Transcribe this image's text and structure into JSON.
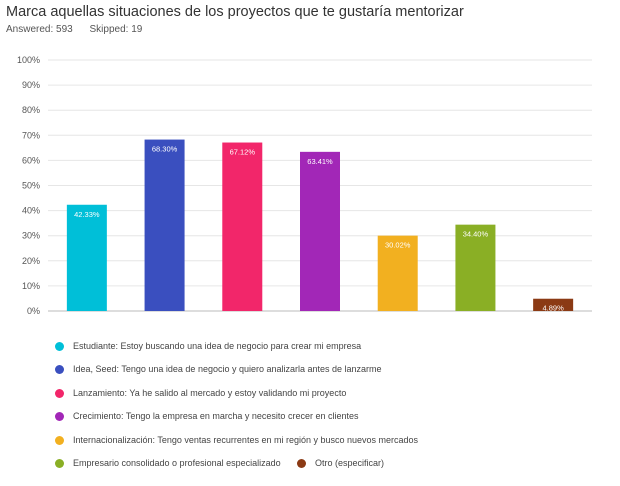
{
  "header": {
    "title": "Marca aquellas situaciones de los proyectos que te gustaría mentorizar",
    "answered": "Answered: 593",
    "skipped": "Skipped: 19"
  },
  "chart_data": {
    "type": "bar",
    "categories": [
      "Estudiante: Estoy buscando una idea de negocio para crear mi empresa",
      "Idea, Seed: Tengo una idea de negocio y quiero analizarla antes de lanzarme",
      "Lanzamiento: Ya he salido al mercado y estoy validando mi proyecto",
      "Crecimiento: Tengo la empresa en marcha y necesito crecer en clientes",
      "Internacionalización: Tengo ventas recurrentes en mi región y busco nuevos mercados",
      "Empresario consolidado o profesional especializado",
      "Otro (especificar)"
    ],
    "values": [
      42.33,
      68.3,
      67.12,
      63.41,
      30.02,
      34.4,
      4.89
    ],
    "value_labels": [
      "42.33%",
      "68.30%",
      "67.12%",
      "63.41%",
      "30.02%",
      "34.40%",
      "4.89%"
    ],
    "colors": [
      "#00BFD8",
      "#3A4FBF",
      "#F2266A",
      "#A227B7",
      "#F2B020",
      "#8AAF25",
      "#8B3A14"
    ],
    "ylim": [
      0,
      100
    ],
    "yticks": [
      "0%",
      "10%",
      "20%",
      "30%",
      "40%",
      "50%",
      "60%",
      "70%",
      "80%",
      "90%",
      "100%"
    ],
    "grid": true,
    "legend_position": "bottom"
  }
}
